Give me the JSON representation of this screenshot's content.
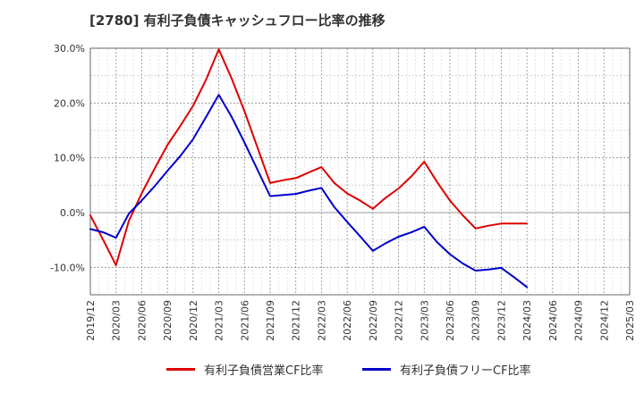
{
  "chart_data": {
    "type": "line",
    "title": "[2780]  有利子負債キャッシュフロー比率の推移",
    "x": [
      "2019/12",
      "2020/03",
      "2020/06",
      "2020/09",
      "2020/12",
      "2021/03",
      "2021/06",
      "2021/09",
      "2021/12",
      "2022/03",
      "2022/06",
      "2022/09",
      "2022/12",
      "2023/03",
      "2023/06",
      "2023/09",
      "2023/12",
      "2024/03",
      "2024/06",
      "2024/09",
      "2024/12",
      "2025/03"
    ],
    "ylim": [
      -15,
      30
    ],
    "yticks": [
      -10,
      0,
      10,
      20,
      30
    ],
    "ytick_labels": [
      "-10.0%",
      "0.0%",
      "10.0%",
      "20.0%",
      "30.0%"
    ],
    "grid": true,
    "legend_position": "bottom",
    "series": [
      {
        "name": "有利子負債営業CF比率",
        "color": "#dd0000",
        "x": [
          0,
          0.5,
          1,
          1.5,
          2,
          2.5,
          3,
          3.5,
          4,
          4.5,
          5,
          5.5,
          6,
          6.5,
          7,
          7.5,
          8,
          8.5,
          9,
          9.5,
          10,
          10.5,
          11,
          11.5,
          12,
          12.5,
          13,
          13.5,
          14,
          14.5,
          15,
          15.5,
          16,
          16.5,
          17
        ],
        "values": [
          -0.5,
          -5.0,
          -9.6,
          -1.5,
          3.5,
          8.0,
          12.3,
          15.8,
          19.5,
          24.2,
          29.8,
          24.5,
          18.5,
          12.0,
          5.4,
          5.9,
          6.3,
          7.3,
          8.3,
          5.4,
          3.5,
          2.2,
          0.7,
          2.7,
          4.4,
          6.6,
          9.3,
          5.6,
          2.2,
          -0.5,
          -2.9,
          -2.4,
          -2.0,
          -2.0,
          -2.0
        ]
      },
      {
        "name": "有利子負債フリーCF比率",
        "color": "#0000cc",
        "x": [
          0,
          0.5,
          1,
          1.5,
          2,
          2.5,
          3,
          3.5,
          4,
          4.5,
          5,
          5.5,
          6,
          6.5,
          7,
          7.5,
          8,
          8.5,
          9,
          9.5,
          10,
          10.5,
          11,
          11.5,
          12,
          12.5,
          13,
          13.5,
          14,
          14.5,
          15,
          15.5,
          16,
          16.5,
          17
        ],
        "values": [
          -3.0,
          -3.6,
          -4.6,
          -0.2,
          2.2,
          4.8,
          7.6,
          10.3,
          13.4,
          17.4,
          21.5,
          17.5,
          12.8,
          7.9,
          3.0,
          3.2,
          3.4,
          4.0,
          4.5,
          1.0,
          -1.7,
          -4.3,
          -7.0,
          -5.6,
          -4.4,
          -3.6,
          -2.6,
          -5.4,
          -7.6,
          -9.3,
          -10.6,
          -10.4,
          -10.1,
          -11.8,
          -13.6
        ]
      }
    ]
  }
}
